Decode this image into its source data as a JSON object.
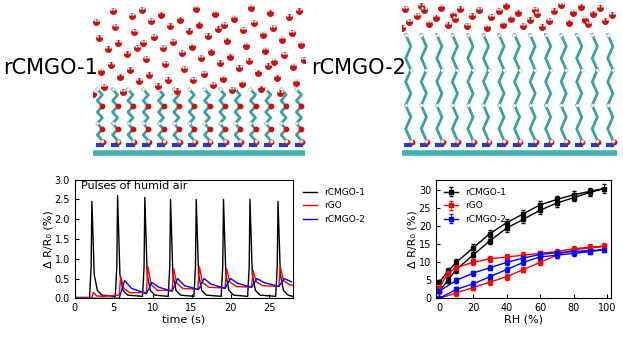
{
  "diagram": {
    "labels": [
      "rCMGO-1",
      "rCMGO-2"
    ]
  },
  "chart_data": [
    {
      "type": "line",
      "annotation": "Pulses of humid air",
      "x_label": "time (s)",
      "y_label": "Δ R/R₀ (%)",
      "xlim": [
        0,
        28
      ],
      "ylim": [
        0,
        3
      ],
      "xticks": [
        0,
        5,
        10,
        15,
        20,
        25
      ],
      "yticks": [
        {
          "value": 0,
          "label": "0.0"
        },
        0.5,
        {
          "value": 1,
          "label": "1.0"
        },
        1.5,
        {
          "value": 2,
          "label": "2.0"
        },
        2.5,
        {
          "value": 3,
          "label": "3.0"
        }
      ],
      "legend": "right",
      "line_style": "solid",
      "series": [
        {
          "name": "rCMGO-1",
          "color": "#000000",
          "x": [
            0,
            1.9,
            2.1,
            2.2,
            2.5,
            2.9,
            3.5,
            5.2,
            5.4,
            5.5,
            5.8,
            6.2,
            6.8,
            8.7,
            8.9,
            9.0,
            9.3,
            9.7,
            10.3,
            12.0,
            12.2,
            12.3,
            12.6,
            13.0,
            13.6,
            15.3,
            15.5,
            15.6,
            15.9,
            16.3,
            16.9,
            18.8,
            19.0,
            19.1,
            19.4,
            19.8,
            20.4,
            22.2,
            22.4,
            22.5,
            22.8,
            23.2,
            23.8,
            25.8,
            26.0,
            26.1,
            26.4,
            26.8,
            27.4,
            28
          ],
          "values": [
            0.02,
            0.02,
            0.8,
            2.45,
            0.6,
            0.2,
            0.08,
            0.05,
            0.8,
            2.6,
            0.6,
            0.2,
            0.08,
            0.05,
            0.8,
            2.55,
            0.6,
            0.2,
            0.08,
            0.05,
            0.8,
            2.5,
            0.6,
            0.2,
            0.08,
            0.05,
            0.8,
            2.5,
            0.6,
            0.2,
            0.08,
            0.05,
            0.8,
            2.5,
            0.6,
            0.2,
            0.08,
            0.05,
            0.8,
            2.5,
            0.6,
            0.2,
            0.08,
            0.05,
            0.8,
            2.45,
            0.6,
            0.2,
            0.08,
            0.05
          ]
        },
        {
          "name": "rGO",
          "color": "#ff0000",
          "x": [
            0,
            2.2,
            2.4,
            2.8,
            3.6,
            5.7,
            5.9,
            6.3,
            7.1,
            9.2,
            9.4,
            9.8,
            10.6,
            12.5,
            12.7,
            13.1,
            13.9,
            15.8,
            16.0,
            16.4,
            17.2,
            19.3,
            19.5,
            19.9,
            20.7,
            22.7,
            22.9,
            23.3,
            24.1,
            26.2,
            26.4,
            26.8,
            27.6,
            28
          ],
          "values": [
            0.02,
            0.02,
            0.15,
            0.06,
            0.05,
            0.08,
            0.55,
            0.25,
            0.14,
            0.15,
            0.8,
            0.35,
            0.2,
            0.2,
            0.75,
            0.38,
            0.25,
            0.23,
            0.8,
            0.4,
            0.28,
            0.26,
            0.75,
            0.42,
            0.3,
            0.28,
            0.7,
            0.42,
            0.32,
            0.3,
            0.8,
            0.45,
            0.34,
            0.33
          ]
        },
        {
          "name": "rCMGO-2",
          "color": "#0000ff",
          "x": [
            0,
            5.7,
            6.4,
            7.3,
            9.2,
            9.9,
            10.8,
            12.5,
            13.2,
            14.1,
            15.9,
            16.6,
            17.5,
            19.3,
            20.0,
            20.9,
            22.7,
            23.4,
            24.3,
            26.2,
            26.9,
            27.8
          ],
          "values": [
            0.0,
            0.0,
            0.45,
            0.25,
            0.12,
            0.4,
            0.28,
            0.18,
            0.5,
            0.32,
            0.22,
            0.5,
            0.36,
            0.25,
            0.5,
            0.38,
            0.28,
            0.5,
            0.4,
            0.3,
            0.5,
            0.42
          ]
        }
      ]
    },
    {
      "type": "line",
      "x_label": "RH (%)",
      "y_label": "Δ R/R₀ (%)",
      "xlim": [
        -2,
        102
      ],
      "ylim": [
        0,
        33
      ],
      "xticks": [
        0,
        20,
        40,
        60,
        80,
        100
      ],
      "yticks": [
        0,
        5,
        10,
        15,
        20,
        25,
        30
      ],
      "legend": "upper left",
      "marker": "square",
      "line_style": "solid",
      "series": [
        {
          "name": "rCMGO-1",
          "color": "#000000",
          "x": [
            0,
            5,
            10,
            20,
            30,
            40,
            50,
            60,
            70,
            80,
            90,
            98,
            90,
            80,
            70,
            60,
            50,
            40,
            30,
            20,
            10,
            5,
            0
          ],
          "values": [
            2,
            5,
            8,
            12,
            16,
            19.5,
            22,
            24.5,
            26.5,
            28,
            29.5,
            30.5,
            29.8,
            28.8,
            27.5,
            26,
            23.5,
            21,
            18,
            14,
            10,
            7.5,
            4.5
          ],
          "errors": [
            0.5,
            0.8,
            1,
            1,
            1,
            1,
            1,
            1,
            1,
            1,
            1,
            1.2,
            1,
            1,
            1,
            1,
            1,
            1,
            1,
            1,
            1,
            0.8,
            0.5
          ]
        },
        {
          "name": "rGO",
          "color": "#ff0000",
          "x": [
            0,
            10,
            20,
            30,
            40,
            50,
            60,
            70,
            80,
            90,
            98,
            90,
            80,
            70,
            60,
            50,
            40,
            30,
            20,
            10,
            5,
            0
          ],
          "values": [
            0,
            1.5,
            3,
            4.5,
            6,
            8,
            10,
            12,
            13.5,
            14,
            14.5,
            14.2,
            13.8,
            13,
            12.5,
            12,
            11.5,
            11,
            10,
            8.5,
            7,
            3
          ],
          "errors": [
            0.5,
            0.8,
            0.8,
            0.8,
            0.8,
            0.8,
            0.8,
            0.8,
            0.8,
            0.8,
            0.8,
            0.8,
            0.8,
            0.8,
            0.8,
            0.8,
            0.8,
            0.8,
            0.8,
            0.8,
            0.8,
            0.5
          ]
        },
        {
          "name": "rCMGO-2",
          "color": "#0000ff",
          "x": [
            0,
            10,
            20,
            30,
            40,
            50,
            60,
            70,
            80,
            90,
            98,
            90,
            80,
            70,
            60,
            50,
            40,
            30,
            20,
            10,
            0
          ],
          "values": [
            0,
            2.5,
            4,
            6,
            8,
            10,
            11.5,
            12,
            12.5,
            13,
            13.5,
            13.3,
            13,
            12.7,
            12.2,
            11.2,
            10,
            8.5,
            7,
            5,
            2
          ],
          "errors": [
            0.5,
            0.7,
            0.7,
            0.7,
            0.7,
            0.7,
            0.7,
            0.7,
            0.7,
            0.7,
            0.7,
            0.7,
            0.7,
            0.7,
            0.7,
            0.7,
            0.7,
            0.7,
            0.7,
            0.7,
            0.5
          ]
        }
      ]
    }
  ]
}
